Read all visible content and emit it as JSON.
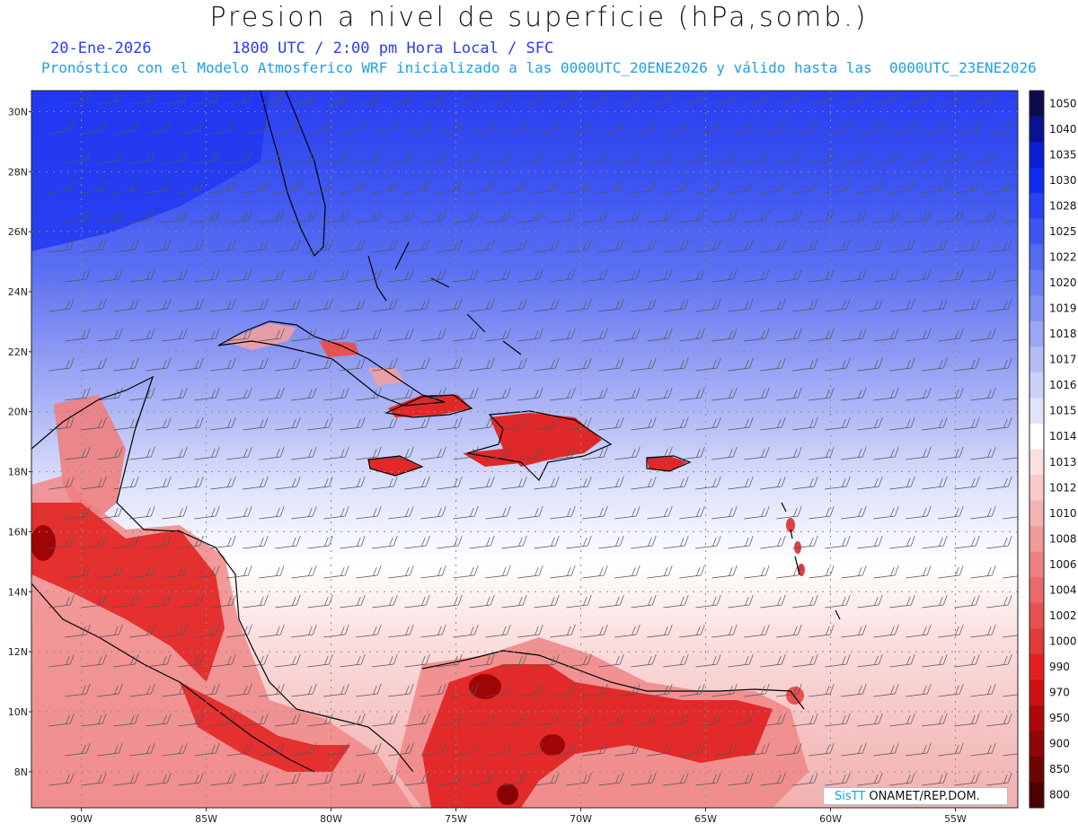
{
  "header": {
    "title": "Presion a nivel de superficie (hPa,somb.)",
    "date": "20-Ene-2026",
    "time_info": "1800 UTC / 2:00 pm Hora Local / SFC",
    "model_info": "Pronóstico con el Modelo Atmosferico WRF inicializado a las 0000UTC_20ENE2026 y válido hasta las  0000UTC_23ENE2026"
  },
  "map": {
    "lon_range": [
      -92,
      -52.5
    ],
    "lat_range": [
      6.8,
      30.7
    ],
    "lat_labels": [
      "30N",
      "28N",
      "26N",
      "24N",
      "22N",
      "20N",
      "18N",
      "16N",
      "14N",
      "12N",
      "10N",
      "8N"
    ],
    "lat_values": [
      30,
      28,
      26,
      24,
      22,
      20,
      18,
      16,
      14,
      12,
      10,
      8
    ],
    "lon_labels": [
      "90W",
      "85W",
      "80W",
      "75W",
      "70W",
      "65W",
      "60W",
      "55W"
    ],
    "lon_values": [
      -90,
      -85,
      -80,
      -75,
      -70,
      -65,
      -60,
      -55
    ],
    "grid": "dotted"
  },
  "colorbar": {
    "labels": [
      "1050",
      "1040",
      "1035",
      "1030",
      "1028",
      "1025",
      "1022",
      "1020",
      "1019",
      "1018",
      "1017",
      "1016",
      "1015",
      "1014",
      "1013",
      "1012",
      "1010",
      "1008",
      "1006",
      "1004",
      "1002",
      "1000",
      "990",
      "970",
      "950",
      "900",
      "850",
      "800"
    ],
    "colors": [
      "#0c0c4e",
      "#0a1290",
      "#0a1cd6",
      "#0c2bf4",
      "#2742f2",
      "#3c55f0",
      "#536af2",
      "#6a7ef3",
      "#8290f3",
      "#9ba6f4",
      "#b4bcf6",
      "#cbd1f8",
      "#e0e4fb",
      "#ffffff",
      "#fbe0e0",
      "#f8caca",
      "#f4b3b3",
      "#f09a9a",
      "#ed8282",
      "#ea6a6a",
      "#e65252",
      "#e33a3a",
      "#e62020",
      "#d01010",
      "#b00808",
      "#900505",
      "#6e0303",
      "#4a0101"
    ]
  },
  "credit": {
    "brand": "SisTT",
    "text": " ONAMET/REP.DOM."
  }
}
